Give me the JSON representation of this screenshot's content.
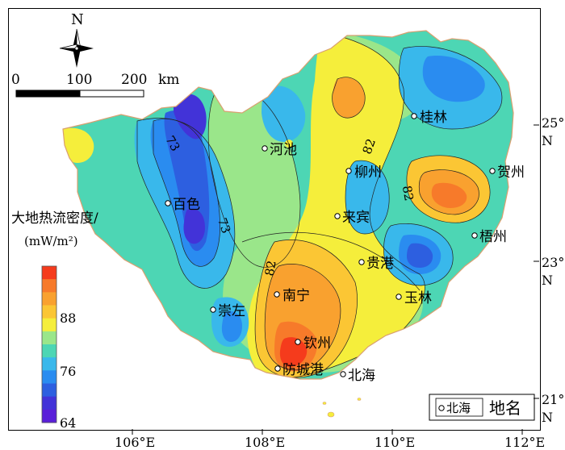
{
  "compass": {
    "north_label": "N"
  },
  "scale_bar": {
    "ticks": [
      "0",
      "100",
      "200"
    ],
    "unit": "km"
  },
  "legend": {
    "title_line1": "大地热流密度/",
    "title_line2": "(mW/m²)",
    "ticks": [
      "88",
      "76",
      "64"
    ],
    "colors": [
      "#f53b1c",
      "#f77a2a",
      "#f9a12f",
      "#fbc634",
      "#f5ee3b",
      "#9ae68a",
      "#4dd6b4",
      "#39b8eb",
      "#2a8cf0",
      "#2d5fe0",
      "#4233d8",
      "#5a1fd9"
    ]
  },
  "contours": [
    "73",
    "73",
    "82",
    "82",
    "82"
  ],
  "cities": [
    {
      "name": "桂林"
    },
    {
      "name": "河池"
    },
    {
      "name": "柳州"
    },
    {
      "name": "贺州"
    },
    {
      "name": "百色"
    },
    {
      "name": "来宾"
    },
    {
      "name": "梧州"
    },
    {
      "name": "贵港"
    },
    {
      "name": "南宁"
    },
    {
      "name": "崇左"
    },
    {
      "name": "玉林"
    },
    {
      "name": "钦州"
    },
    {
      "name": "防城港"
    },
    {
      "name": "北海"
    }
  ],
  "place_legend": {
    "sample": "北海",
    "label": "地名"
  },
  "lat_labels": [
    {
      "deg": "25°",
      "hemi": "N"
    },
    {
      "deg": "23°",
      "hemi": "N"
    },
    {
      "deg": "21°",
      "hemi": "N"
    }
  ],
  "lon_labels": [
    "106°E",
    "108°E",
    "110°E",
    "112°E"
  ]
}
